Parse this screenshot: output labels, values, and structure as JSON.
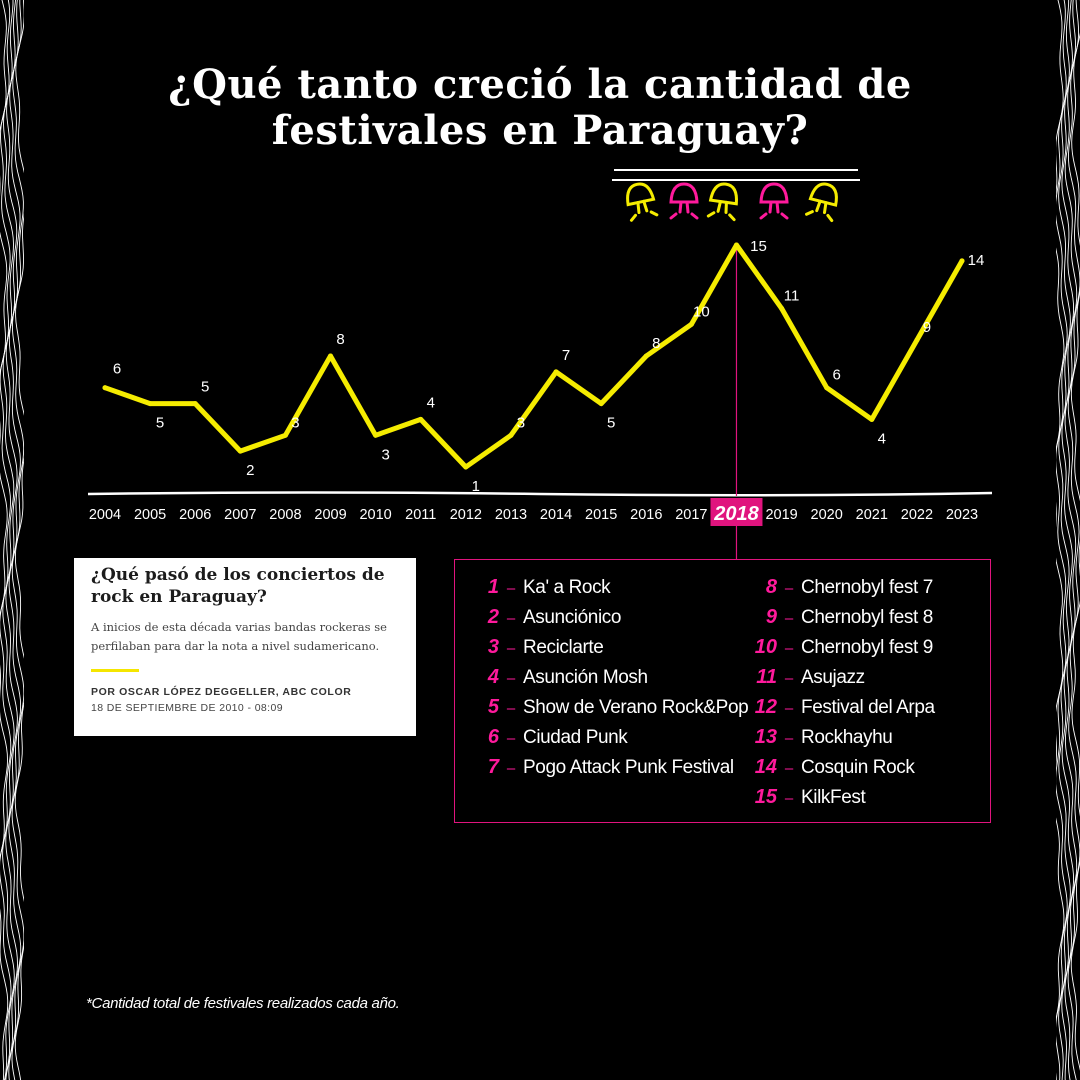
{
  "title": {
    "line1": "¿Qué tanto creció la cantidad de",
    "line2": "festivales en Paraguay?"
  },
  "chart_data": {
    "type": "line",
    "categories": [
      "2004",
      "2005",
      "2006",
      "2007",
      "2008",
      "2009",
      "2010",
      "2011",
      "2012",
      "2013",
      "2014",
      "2015",
      "2016",
      "2017",
      "2018",
      "2019",
      "2020",
      "2021",
      "2022",
      "2023"
    ],
    "values": [
      6,
      5,
      5,
      2,
      3,
      8,
      3,
      4,
      1,
      3,
      7,
      5,
      8,
      10,
      15,
      11,
      6,
      4,
      9,
      14
    ],
    "highlight_category": "2018",
    "line_color": "#f5ec00",
    "highlight_color": "#e0147e",
    "grid": false
  },
  "article": {
    "title": "¿Qué pasó de los conciertos de rock en Paraguay?",
    "summary": "A inicios de esta década varias bandas rockeras se perfilaban para dar la nota a nivel sudamericano.",
    "author": "POR OSCAR LÓPEZ DEGGELLER, ABC COLOR",
    "date": "18 DE SEPTIEMBRE DE 2010 - 08:09"
  },
  "legend": {
    "items": [
      {
        "num": "1",
        "name": "Ka' a Rock"
      },
      {
        "num": "2",
        "name": "Asunciónico"
      },
      {
        "num": "3",
        "name": "Reciclarte"
      },
      {
        "num": "4",
        "name": "Asunción Mosh"
      },
      {
        "num": "5",
        "name": "Show de Verano Rock&Pop"
      },
      {
        "num": "6",
        "name": "Ciudad Punk"
      },
      {
        "num": "7",
        "name": "Pogo Attack Punk Festival"
      },
      {
        "num": "8",
        "name": "Chernobyl fest 7"
      },
      {
        "num": "9",
        "name": "Chernobyl fest 8"
      },
      {
        "num": "10",
        "name": "Chernobyl fest 9"
      },
      {
        "num": "11",
        "name": "Asujazz"
      },
      {
        "num": "12",
        "name": "Festival del Arpa"
      },
      {
        "num": "13",
        "name": "Rockhayhu"
      },
      {
        "num": "14",
        "name": "Cosquin Rock"
      },
      {
        "num": "15",
        "name": "KilkFest"
      }
    ],
    "dash": "–"
  },
  "footnote": "*Cantidad total de festivales realizados cada año.",
  "colors": {
    "background": "#000000",
    "accent_yellow": "#f5ec00",
    "accent_pink": "#e0147e"
  },
  "icons": [
    "wavy-lines-pattern",
    "mushroom-icon"
  ]
}
